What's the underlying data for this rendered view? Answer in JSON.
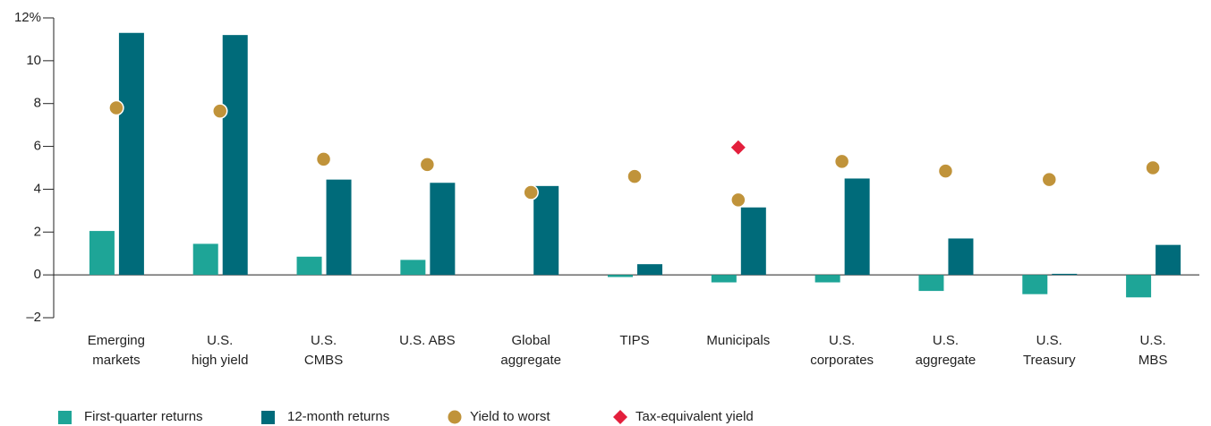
{
  "chart_data": {
    "type": "bar",
    "categories": [
      [
        "Emerging",
        "markets"
      ],
      [
        "U.S.",
        "high yield"
      ],
      [
        "U.S.",
        "CMBS"
      ],
      [
        "U.S. ABS"
      ],
      [
        "Global",
        "aggregate"
      ],
      [
        "TIPS"
      ],
      [
        "Municipals"
      ],
      [
        "U.S.",
        "corporates"
      ],
      [
        "U.S.",
        "aggregate"
      ],
      [
        "U.S.",
        "Treasury"
      ],
      [
        "U.S.",
        "MBS"
      ]
    ],
    "series": [
      {
        "name": "First-quarter returns",
        "color": "#1ea597",
        "kind": "bar",
        "values": [
          2.05,
          1.45,
          0.85,
          0.7,
          null,
          -0.1,
          -0.35,
          -0.35,
          -0.75,
          -0.9,
          -1.05
        ]
      },
      {
        "name": "12-month returns",
        "color": "#006b7a",
        "kind": "bar",
        "values": [
          11.3,
          11.2,
          4.45,
          4.3,
          4.15,
          0.5,
          3.15,
          4.5,
          1.7,
          0.05,
          1.4
        ]
      },
      {
        "name": "Yield to worst",
        "color": "#c0933a",
        "kind": "circle",
        "values": [
          7.8,
          7.65,
          5.4,
          5.15,
          3.85,
          4.6,
          3.5,
          5.3,
          4.85,
          4.45,
          5.0
        ]
      },
      {
        "name": "Tax-equivalent yield",
        "color": "#e31f3c",
        "kind": "diamond",
        "values": [
          null,
          null,
          null,
          null,
          null,
          null,
          5.95,
          null,
          null,
          null,
          null
        ]
      }
    ],
    "ylim": [
      -2,
      12
    ],
    "yticks": [
      {
        "value": -2,
        "label": "–2"
      },
      0,
      2,
      4,
      6,
      8,
      10,
      {
        "value": 12,
        "label": "12%"
      }
    ],
    "legend": "bottom"
  }
}
